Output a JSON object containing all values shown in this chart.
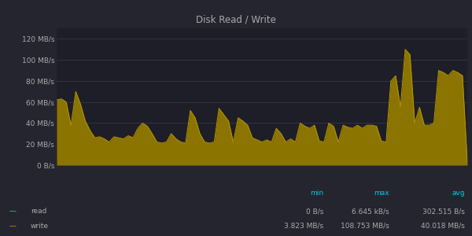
{
  "title": "Disk Read / Write",
  "bg_color": "#252530",
  "plot_bg_color": "#1e1e28",
  "grid_color": "#3a3a4e",
  "text_color": "#aaaaaa",
  "cyan_color": "#00ccdd",
  "fill_color": "#8b7500",
  "line_color": "#b89800",
  "read_line_color": "#44cc44",
  "read_fill_color": "#44cc44",
  "ytick_labels": [
    "0 B/s",
    "20 MB/s",
    "40 MB/s",
    "60 MB/s",
    "80 MB/s",
    "100 MB/s",
    "120 MB/s"
  ],
  "ytick_values": [
    0,
    20,
    40,
    60,
    80,
    100,
    120
  ],
  "ylim": [
    0,
    130
  ],
  "legend_read_label": "read",
  "legend_write_label": "write",
  "legend_min_label": "min",
  "legend_max_label": "max",
  "legend_avg_label": "avg",
  "read_min": "0 B/s",
  "read_max": "6.645 kB/s",
  "read_avg": "302.515 B/s",
  "write_min": "3.823 MB/s",
  "write_max": "108.753 MB/s",
  "write_avg": "40.018 MB/s",
  "write_data": [
    62,
    63,
    60,
    38,
    70,
    58,
    42,
    33,
    26,
    27,
    25,
    22,
    27,
    26,
    25,
    28,
    26,
    35,
    40,
    37,
    30,
    22,
    21,
    22,
    30,
    25,
    22,
    21,
    52,
    45,
    30,
    22,
    21,
    22,
    54,
    48,
    42,
    22,
    45,
    42,
    38,
    26,
    24,
    22,
    24,
    22,
    35,
    30,
    22,
    25,
    22,
    40,
    37,
    35,
    38,
    23,
    22,
    40,
    37,
    22,
    38,
    36,
    35,
    38,
    35,
    38,
    38,
    37,
    23,
    22,
    80,
    85,
    55,
    110,
    105,
    40,
    55,
    38,
    38,
    40,
    90,
    88,
    85,
    90,
    88,
    85,
    3
  ],
  "read_data": [
    0,
    0,
    0,
    0,
    0,
    0,
    0,
    0,
    0,
    0,
    0,
    0,
    0,
    0,
    0,
    0,
    0,
    0,
    0,
    0,
    0,
    0,
    0,
    0,
    0,
    0,
    0,
    0,
    0,
    0,
    0,
    0,
    0,
    0,
    0,
    0,
    0,
    0,
    0,
    0,
    0,
    0,
    0,
    0,
    0,
    0,
    0,
    0,
    0,
    0,
    0,
    0,
    0,
    0,
    0,
    0,
    0,
    0,
    0,
    0,
    0,
    0,
    0,
    0,
    0,
    0,
    0,
    0,
    0,
    0,
    0,
    0,
    0,
    0,
    0,
    0,
    0,
    0,
    0,
    0,
    0,
    0,
    0,
    0,
    0,
    0,
    0
  ]
}
